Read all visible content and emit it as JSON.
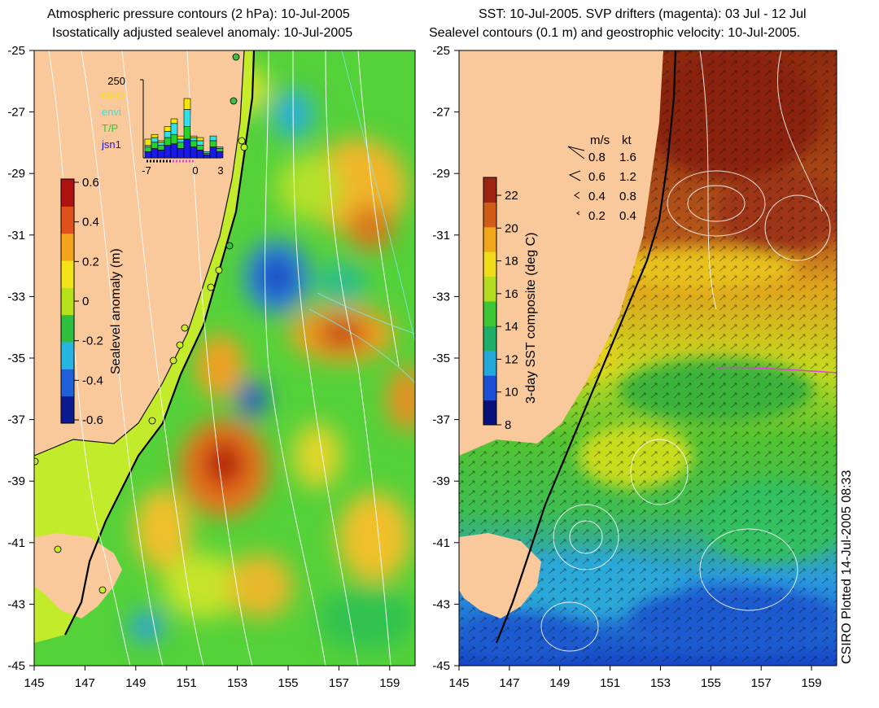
{
  "left_panel": {
    "title_line1": "Atmospheric pressure contours (2 hPa): 10-Jul-2005",
    "title_line2": "Isostatically adjusted sealevel anomaly: 10-Jul-2005",
    "colorbar_label": "Sealevel anomaly (m)",
    "colorbar_ticks": [
      "0.6",
      "0.4",
      "0.2",
      "0",
      "-0.2",
      "-0.4",
      "-0.6"
    ],
    "colorbar_colors": [
      "#0b1b8f",
      "#1f5fd9",
      "#27b4e0",
      "#2fbf3f",
      "#b6e01a",
      "#f5e31a",
      "#f5a31a",
      "#e0501a",
      "#b01010"
    ],
    "histogram": {
      "max_label": "250",
      "legend": [
        {
          "name": "GFO",
          "color": "#f5e600"
        },
        {
          "name": "envi",
          "color": "#33e0ea"
        },
        {
          "name": "T/P",
          "color": "#26d12a"
        },
        {
          "name": "jsn1",
          "color": "#1a1ae6"
        }
      ],
      "x_ticks": [
        "-7",
        "0",
        "3"
      ],
      "bars": [
        {
          "jsn1": 20,
          "tp": 15,
          "envi": 5,
          "gfo": 20
        },
        {
          "jsn1": 30,
          "tp": 20,
          "envi": 15,
          "gfo": 10
        },
        {
          "jsn1": 25,
          "tp": 15,
          "envi": 10,
          "gfo": 5
        },
        {
          "jsn1": 40,
          "tp": 25,
          "envi": 20,
          "gfo": 15
        },
        {
          "jsn1": 45,
          "tp": 30,
          "envi": 35,
          "gfo": 15
        },
        {
          "jsn1": 30,
          "tp": 20,
          "envi": 10,
          "gfo": 10
        },
        {
          "jsn1": 60,
          "tp": 40,
          "envi": 55,
          "gfo": 35
        },
        {
          "jsn1": 35,
          "tp": 20,
          "envi": 10,
          "gfo": 5
        },
        {
          "jsn1": 25,
          "tp": 15,
          "envi": 15,
          "gfo": 10
        },
        {
          "jsn1": 10,
          "tp": 5,
          "envi": 5,
          "gfo": 0
        },
        {
          "jsn1": 35,
          "tp": 20,
          "envi": 15,
          "gfo": 0
        },
        {
          "jsn1": 20,
          "tp": 10,
          "envi": 5,
          "gfo": 0
        }
      ]
    }
  },
  "right_panel": {
    "title_line1": "SST: 10-Jul-2005. SVP drifters (magenta): 03 Jul - 12 Jul",
    "title_line2": "Sealevel contours (0.1 m) and geostrophic velocity: 10-Jul-2005.",
    "colorbar_label": "3-day SST composite (deg C)",
    "colorbar_ticks": [
      "22",
      "20",
      "18",
      "16",
      "14",
      "12",
      "10",
      "8"
    ],
    "colorbar_colors": [
      "#08107a",
      "#1a4fd6",
      "#22a9d9",
      "#1fae68",
      "#3cc635",
      "#b4dc1f",
      "#f2dc1a",
      "#f0a81a",
      "#cf5d16",
      "#9c2410"
    ],
    "velocity_legend": {
      "header_ms": "m/s",
      "header_kt": "kt",
      "rows": [
        {
          "ms": "0.8",
          "kt": "1.6"
        },
        {
          "ms": "0.6",
          "kt": "1.2"
        },
        {
          "ms": "0.4",
          "kt": "0.8"
        },
        {
          "ms": "0.2",
          "kt": "0.4"
        }
      ]
    }
  },
  "axes": {
    "lat_ticks": [
      "-25",
      "-27",
      "-29",
      "-31",
      "-33",
      "-35",
      "-37",
      "-39",
      "-41",
      "-43",
      "-45"
    ],
    "lon_ticks": [
      "145",
      "147",
      "149",
      "151",
      "153",
      "155",
      "157",
      "159"
    ]
  },
  "credit": "CSIRO Plotted 14-Jul-2005 08:33",
  "colors": {
    "land": "#f9c89b",
    "ocean_green": "#55d13a",
    "coast_band": "#c8ec2a"
  }
}
